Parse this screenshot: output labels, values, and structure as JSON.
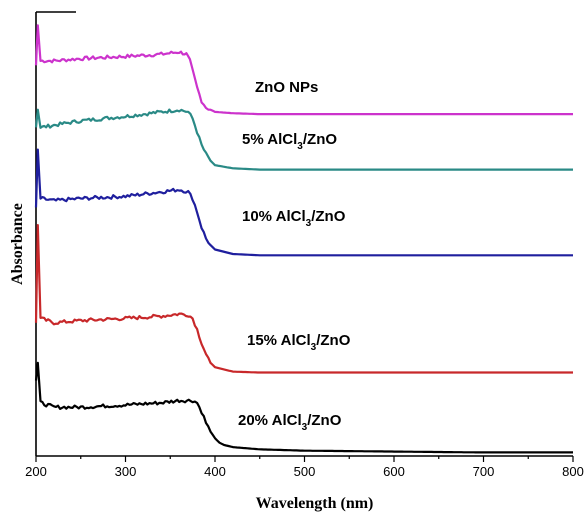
{
  "chart_data": {
    "type": "line",
    "xlabel": "Wavelength (nm)",
    "ylabel": "Absorbance",
    "xlim": [
      200,
      800
    ],
    "ylim": [
      0,
      1
    ],
    "xticks": [
      "200",
      "300",
      "400",
      "500",
      "600",
      "700",
      "800"
    ],
    "y_tick_labels": false,
    "grid": false,
    "legend": "inline labels next to each curve",
    "series": [
      {
        "name": "ZnO NPs",
        "label_parts": [
          "ZnO NPs",
          "",
          ""
        ],
        "color": "#cc33cc",
        "x": [
          200,
          202,
          205,
          220,
          250,
          300,
          340,
          360,
          368,
          372,
          376,
          380,
          385,
          390,
          400,
          420,
          450,
          500,
          600,
          700,
          800
        ],
        "y": [
          0.88,
          0.97,
          0.89,
          0.89,
          0.895,
          0.9,
          0.905,
          0.91,
          0.905,
          0.89,
          0.86,
          0.83,
          0.8,
          0.785,
          0.775,
          0.772,
          0.77,
          0.77,
          0.77,
          0.77,
          0.77
        ]
      },
      {
        "name": "5% AlCl3/ZnO",
        "label_parts": [
          "5% AlCl",
          "3",
          "/ZnO"
        ],
        "color": "#2a8a86",
        "x": [
          200,
          202,
          205,
          220,
          250,
          300,
          340,
          360,
          370,
          375,
          380,
          385,
          390,
          395,
          400,
          420,
          450,
          500,
          600,
          700,
          800
        ],
        "y": [
          0.74,
          0.78,
          0.74,
          0.745,
          0.755,
          0.765,
          0.775,
          0.78,
          0.775,
          0.76,
          0.73,
          0.7,
          0.68,
          0.665,
          0.655,
          0.648,
          0.645,
          0.645,
          0.645,
          0.645,
          0.645
        ]
      },
      {
        "name": "10% AlCl3/ZnO",
        "label_parts": [
          "10% AlCl",
          "3",
          "/ZnO"
        ],
        "color": "#1f1f9e",
        "x": [
          200,
          202,
          205,
          220,
          250,
          300,
          340,
          360,
          370,
          375,
          380,
          385,
          390,
          395,
          400,
          420,
          450,
          500,
          600,
          700,
          800
        ],
        "y": [
          0.56,
          0.69,
          0.58,
          0.575,
          0.58,
          0.585,
          0.595,
          0.6,
          0.595,
          0.58,
          0.55,
          0.515,
          0.49,
          0.475,
          0.465,
          0.455,
          0.452,
          0.452,
          0.452,
          0.452,
          0.452
        ]
      },
      {
        "name": "15% AlCl3/ZnO",
        "label_parts": [
          "15% AlCl",
          "3",
          "/ZnO"
        ],
        "color": "#c8282a",
        "x": [
          200,
          202,
          205,
          220,
          250,
          300,
          340,
          360,
          370,
          375,
          380,
          385,
          390,
          395,
          400,
          420,
          450,
          500,
          600,
          700,
          800
        ],
        "y": [
          0.3,
          0.52,
          0.31,
          0.3,
          0.305,
          0.31,
          0.315,
          0.32,
          0.318,
          0.31,
          0.285,
          0.255,
          0.23,
          0.21,
          0.2,
          0.19,
          0.188,
          0.188,
          0.188,
          0.188,
          0.188
        ]
      },
      {
        "name": "20% AlCl3/ZnO",
        "label_parts": [
          "20% AlCl",
          "3",
          "/ZnO"
        ],
        "color": "#000000",
        "x": [
          200,
          202,
          205,
          220,
          250,
          300,
          340,
          360,
          375,
          380,
          385,
          390,
          395,
          400,
          405,
          410,
          420,
          450,
          500,
          600,
          700,
          800
        ],
        "y": [
          0.17,
          0.21,
          0.12,
          0.11,
          0.11,
          0.115,
          0.12,
          0.125,
          0.125,
          0.12,
          0.1,
          0.075,
          0.055,
          0.04,
          0.03,
          0.025,
          0.02,
          0.015,
          0.012,
          0.01,
          0.008,
          0.008
        ]
      }
    ]
  }
}
